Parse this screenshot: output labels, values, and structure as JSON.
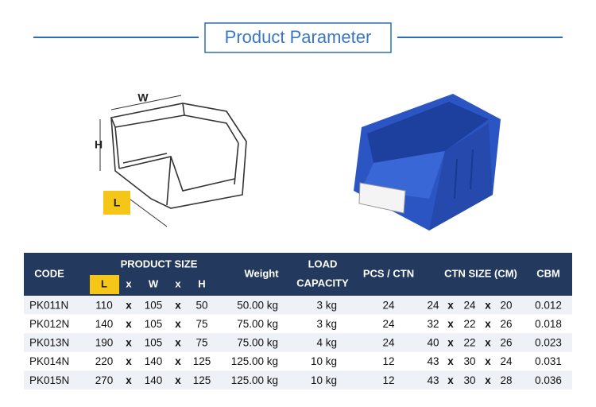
{
  "header": {
    "title": "Product Parameter"
  },
  "diagram": {
    "width_label": "W",
    "height_label": "H",
    "length_label": "L"
  },
  "table": {
    "columns": {
      "code": "CODE",
      "product_size": "PRODUCT SIZE",
      "size_cols": [
        "L",
        "x",
        "W",
        "x",
        "H"
      ],
      "weight": "Weight",
      "load_capacity": [
        "LOAD",
        "CAPACITY"
      ],
      "pcs_ctn": "PCS / CTN",
      "ctn_size": "CTN SIZE (CM)",
      "cbm": "CBM"
    },
    "rows": [
      [
        "PK011N",
        "110",
        "x",
        "105",
        "x",
        "50",
        "50.00 kg",
        "3 kg",
        "24",
        "24",
        "x",
        "24",
        "x",
        "20",
        "0.012"
      ],
      [
        "PK012N",
        "140",
        "x",
        "105",
        "x",
        "75",
        "75.00 kg",
        "3 kg",
        "24",
        "32",
        "x",
        "22",
        "x",
        "26",
        "0.018"
      ],
      [
        "PK013N",
        "190",
        "x",
        "105",
        "x",
        "75",
        "75.00 kg",
        "4 kg",
        "24",
        "40",
        "x",
        "22",
        "x",
        "26",
        "0.023"
      ],
      [
        "PK014N",
        "220",
        "x",
        "140",
        "x",
        "125",
        "125.00 kg",
        "10 kg",
        "12",
        "43",
        "x",
        "30",
        "x",
        "24",
        "0.031"
      ],
      [
        "PK015N",
        "270",
        "x",
        "140",
        "x",
        "125",
        "125.00 kg",
        "10 kg",
        "12",
        "43",
        "x",
        "30",
        "x",
        "28",
        "0.036"
      ]
    ]
  }
}
